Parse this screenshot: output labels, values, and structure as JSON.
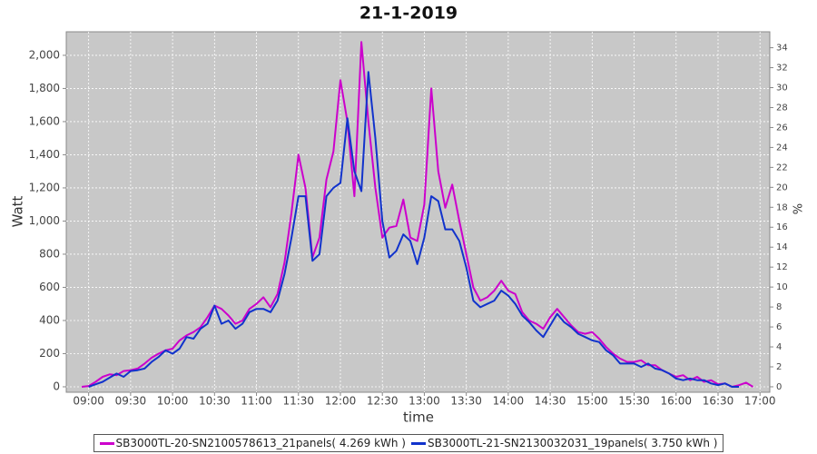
{
  "chart_data": {
    "type": "line",
    "title": "21-1-2019",
    "x_label": "time",
    "y_label": "Watt",
    "y2_label": "%",
    "x": [
      "08:55",
      "09:00",
      "09:05",
      "09:10",
      "09:15",
      "09:20",
      "09:25",
      "09:30",
      "09:35",
      "09:40",
      "09:45",
      "09:50",
      "09:55",
      "10:00",
      "10:05",
      "10:10",
      "10:15",
      "10:20",
      "10:25",
      "10:30",
      "10:35",
      "10:40",
      "10:45",
      "10:50",
      "10:55",
      "11:00",
      "11:05",
      "11:10",
      "11:15",
      "11:20",
      "11:25",
      "11:30",
      "11:35",
      "11:40",
      "11:45",
      "11:50",
      "11:55",
      "12:00",
      "12:05",
      "12:10",
      "12:15",
      "12:20",
      "12:25",
      "12:30",
      "12:35",
      "12:40",
      "12:45",
      "12:50",
      "12:55",
      "13:00",
      "13:05",
      "13:10",
      "13:15",
      "13:20",
      "13:25",
      "13:30",
      "13:35",
      "13:40",
      "13:45",
      "13:50",
      "13:55",
      "14:00",
      "14:05",
      "14:10",
      "14:15",
      "14:20",
      "14:25",
      "14:30",
      "14:35",
      "14:40",
      "14:45",
      "14:50",
      "14:55",
      "15:00",
      "15:05",
      "15:10",
      "15:15",
      "15:20",
      "15:25",
      "15:30",
      "15:35",
      "15:40",
      "15:45",
      "15:50",
      "15:55",
      "16:00",
      "16:05",
      "16:10",
      "16:15",
      "16:20",
      "16:25",
      "16:30",
      "16:35",
      "16:40",
      "16:45",
      "16:50",
      "16:55"
    ],
    "series": [
      {
        "name": "SB3000TL-20-SN2100578613_21panels( 4.269 kWh )",
        "color": "#cc00cc",
        "values": [
          0,
          5,
          30,
          60,
          75,
          70,
          95,
          100,
          110,
          140,
          175,
          200,
          220,
          230,
          280,
          310,
          330,
          360,
          420,
          490,
          470,
          430,
          380,
          400,
          470,
          500,
          540,
          480,
          560,
          750,
          1050,
          1400,
          1200,
          780,
          900,
          1250,
          1420,
          1850,
          1600,
          1150,
          2080,
          1600,
          1200,
          900,
          960,
          970,
          1130,
          900,
          880,
          1100,
          1800,
          1300,
          1080,
          1220,
          1000,
          800,
          600,
          520,
          540,
          580,
          640,
          580,
          560,
          450,
          400,
          380,
          350,
          420,
          470,
          420,
          370,
          330,
          320,
          330,
          290,
          240,
          200,
          170,
          150,
          150,
          160,
          130,
          130,
          100,
          80,
          60,
          70,
          40,
          60,
          30,
          40,
          15,
          20,
          0,
          10,
          25,
          0
        ]
      },
      {
        "name": "SB3000TL-21-SN2130032031_19panels( 3.750 kWh )",
        "color": "#1133cc",
        "values": [
          null,
          0,
          15,
          30,
          55,
          80,
          60,
          95,
          100,
          110,
          150,
          180,
          220,
          200,
          230,
          300,
          290,
          350,
          380,
          490,
          380,
          400,
          350,
          380,
          450,
          470,
          470,
          450,
          520,
          680,
          900,
          1150,
          1150,
          760,
          800,
          1150,
          1200,
          1230,
          1620,
          1300,
          1180,
          1900,
          1500,
          1000,
          780,
          820,
          920,
          880,
          740,
          900,
          1150,
          1120,
          950,
          950,
          880,
          720,
          520,
          480,
          500,
          520,
          580,
          550,
          500,
          430,
          390,
          340,
          300,
          370,
          440,
          390,
          360,
          320,
          300,
          280,
          270,
          220,
          190,
          140,
          140,
          140,
          120,
          140,
          110,
          100,
          80,
          50,
          40,
          50,
          40,
          40,
          20,
          10,
          20,
          0,
          0,
          null,
          null
        ]
      }
    ],
    "xlim": [
      "08:44",
      "17:07"
    ],
    "xticks": [
      "09:00",
      "09:30",
      "10:00",
      "10:30",
      "11:00",
      "11:30",
      "12:00",
      "12:30",
      "13:00",
      "13:30",
      "14:00",
      "14:30",
      "15:00",
      "15:30",
      "16:00",
      "16:30",
      "17:00"
    ],
    "ylim": [
      -33,
      2142
    ],
    "yticks": [
      0,
      200,
      400,
      600,
      800,
      {
        "value": 1000,
        "label": "1,000"
      },
      {
        "value": 1200,
        "label": "1,200"
      },
      {
        "value": 1400,
        "label": "1,400"
      },
      {
        "value": 1600,
        "label": "1,600"
      },
      {
        "value": 1800,
        "label": "1,800"
      },
      {
        "value": 2000,
        "label": "2,000"
      }
    ],
    "y2lim": [
      -0.55,
      35.6
    ],
    "y2ticks": [
      0,
      2,
      4,
      6,
      8,
      10,
      12,
      14,
      16,
      18,
      20,
      22,
      24,
      26,
      28,
      30,
      32,
      34
    ],
    "grid": true
  }
}
